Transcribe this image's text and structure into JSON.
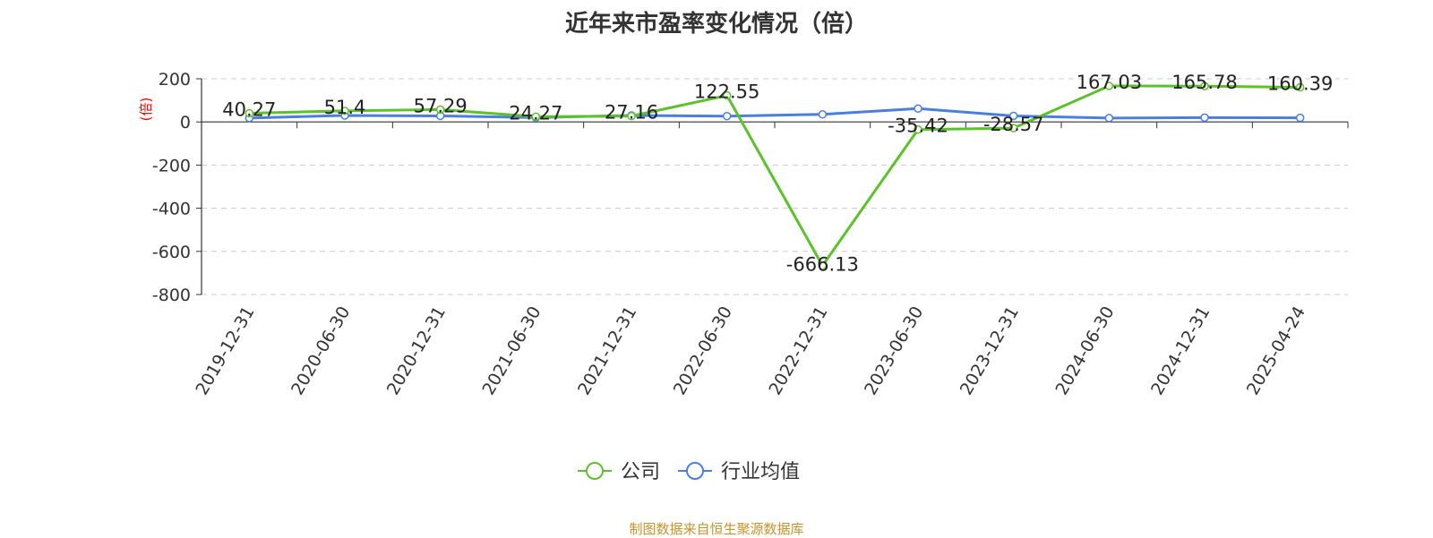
{
  "title": "近年来市盈率变化情况（倍）",
  "source": "制图数据来自恒生聚源数据库",
  "colors": {
    "company": "#5cc22a",
    "industry": "#4a7fe0",
    "ylabel": "#ff0000",
    "grid": "#cccccc",
    "axis": "#333333",
    "source": "#c8922a"
  },
  "chart_data": {
    "type": "line",
    "title": "近年来市盈率变化情况（倍）",
    "xlabel": "",
    "ylabel": "(倍)",
    "ylim": [
      -800,
      200
    ],
    "yticks": [
      200,
      0,
      -200,
      -400,
      -600,
      -800
    ],
    "grid": "horizontal dashed",
    "legend_position": "bottom-center",
    "categories": [
      "2019-12-31",
      "2020-06-30",
      "2020-12-31",
      "2021-06-30",
      "2021-12-31",
      "2022-06-30",
      "2022-12-31",
      "2023-06-30",
      "2023-12-31",
      "2024-06-30",
      "2024-12-31",
      "2025-04-24"
    ],
    "series": [
      {
        "name": "公司",
        "color": "#5cc22a",
        "values": [
          40.27,
          51.4,
          57.29,
          24.27,
          27.16,
          122.55,
          -666.13,
          -35.42,
          -28.57,
          167.03,
          165.78,
          160.39
        ],
        "labels": [
          "40.27",
          "51.4",
          "57.29",
          "24.27",
          "27.16",
          "122.55",
          "-666.13",
          "-35.42",
          "-28.57",
          "167.03",
          "165.78",
          "160.39"
        ]
      },
      {
        "name": "行业均值",
        "color": "#4a7fe0",
        "values": [
          18,
          30,
          28,
          20,
          30,
          27,
          35,
          62,
          28,
          18,
          20,
          19
        ]
      }
    ]
  }
}
